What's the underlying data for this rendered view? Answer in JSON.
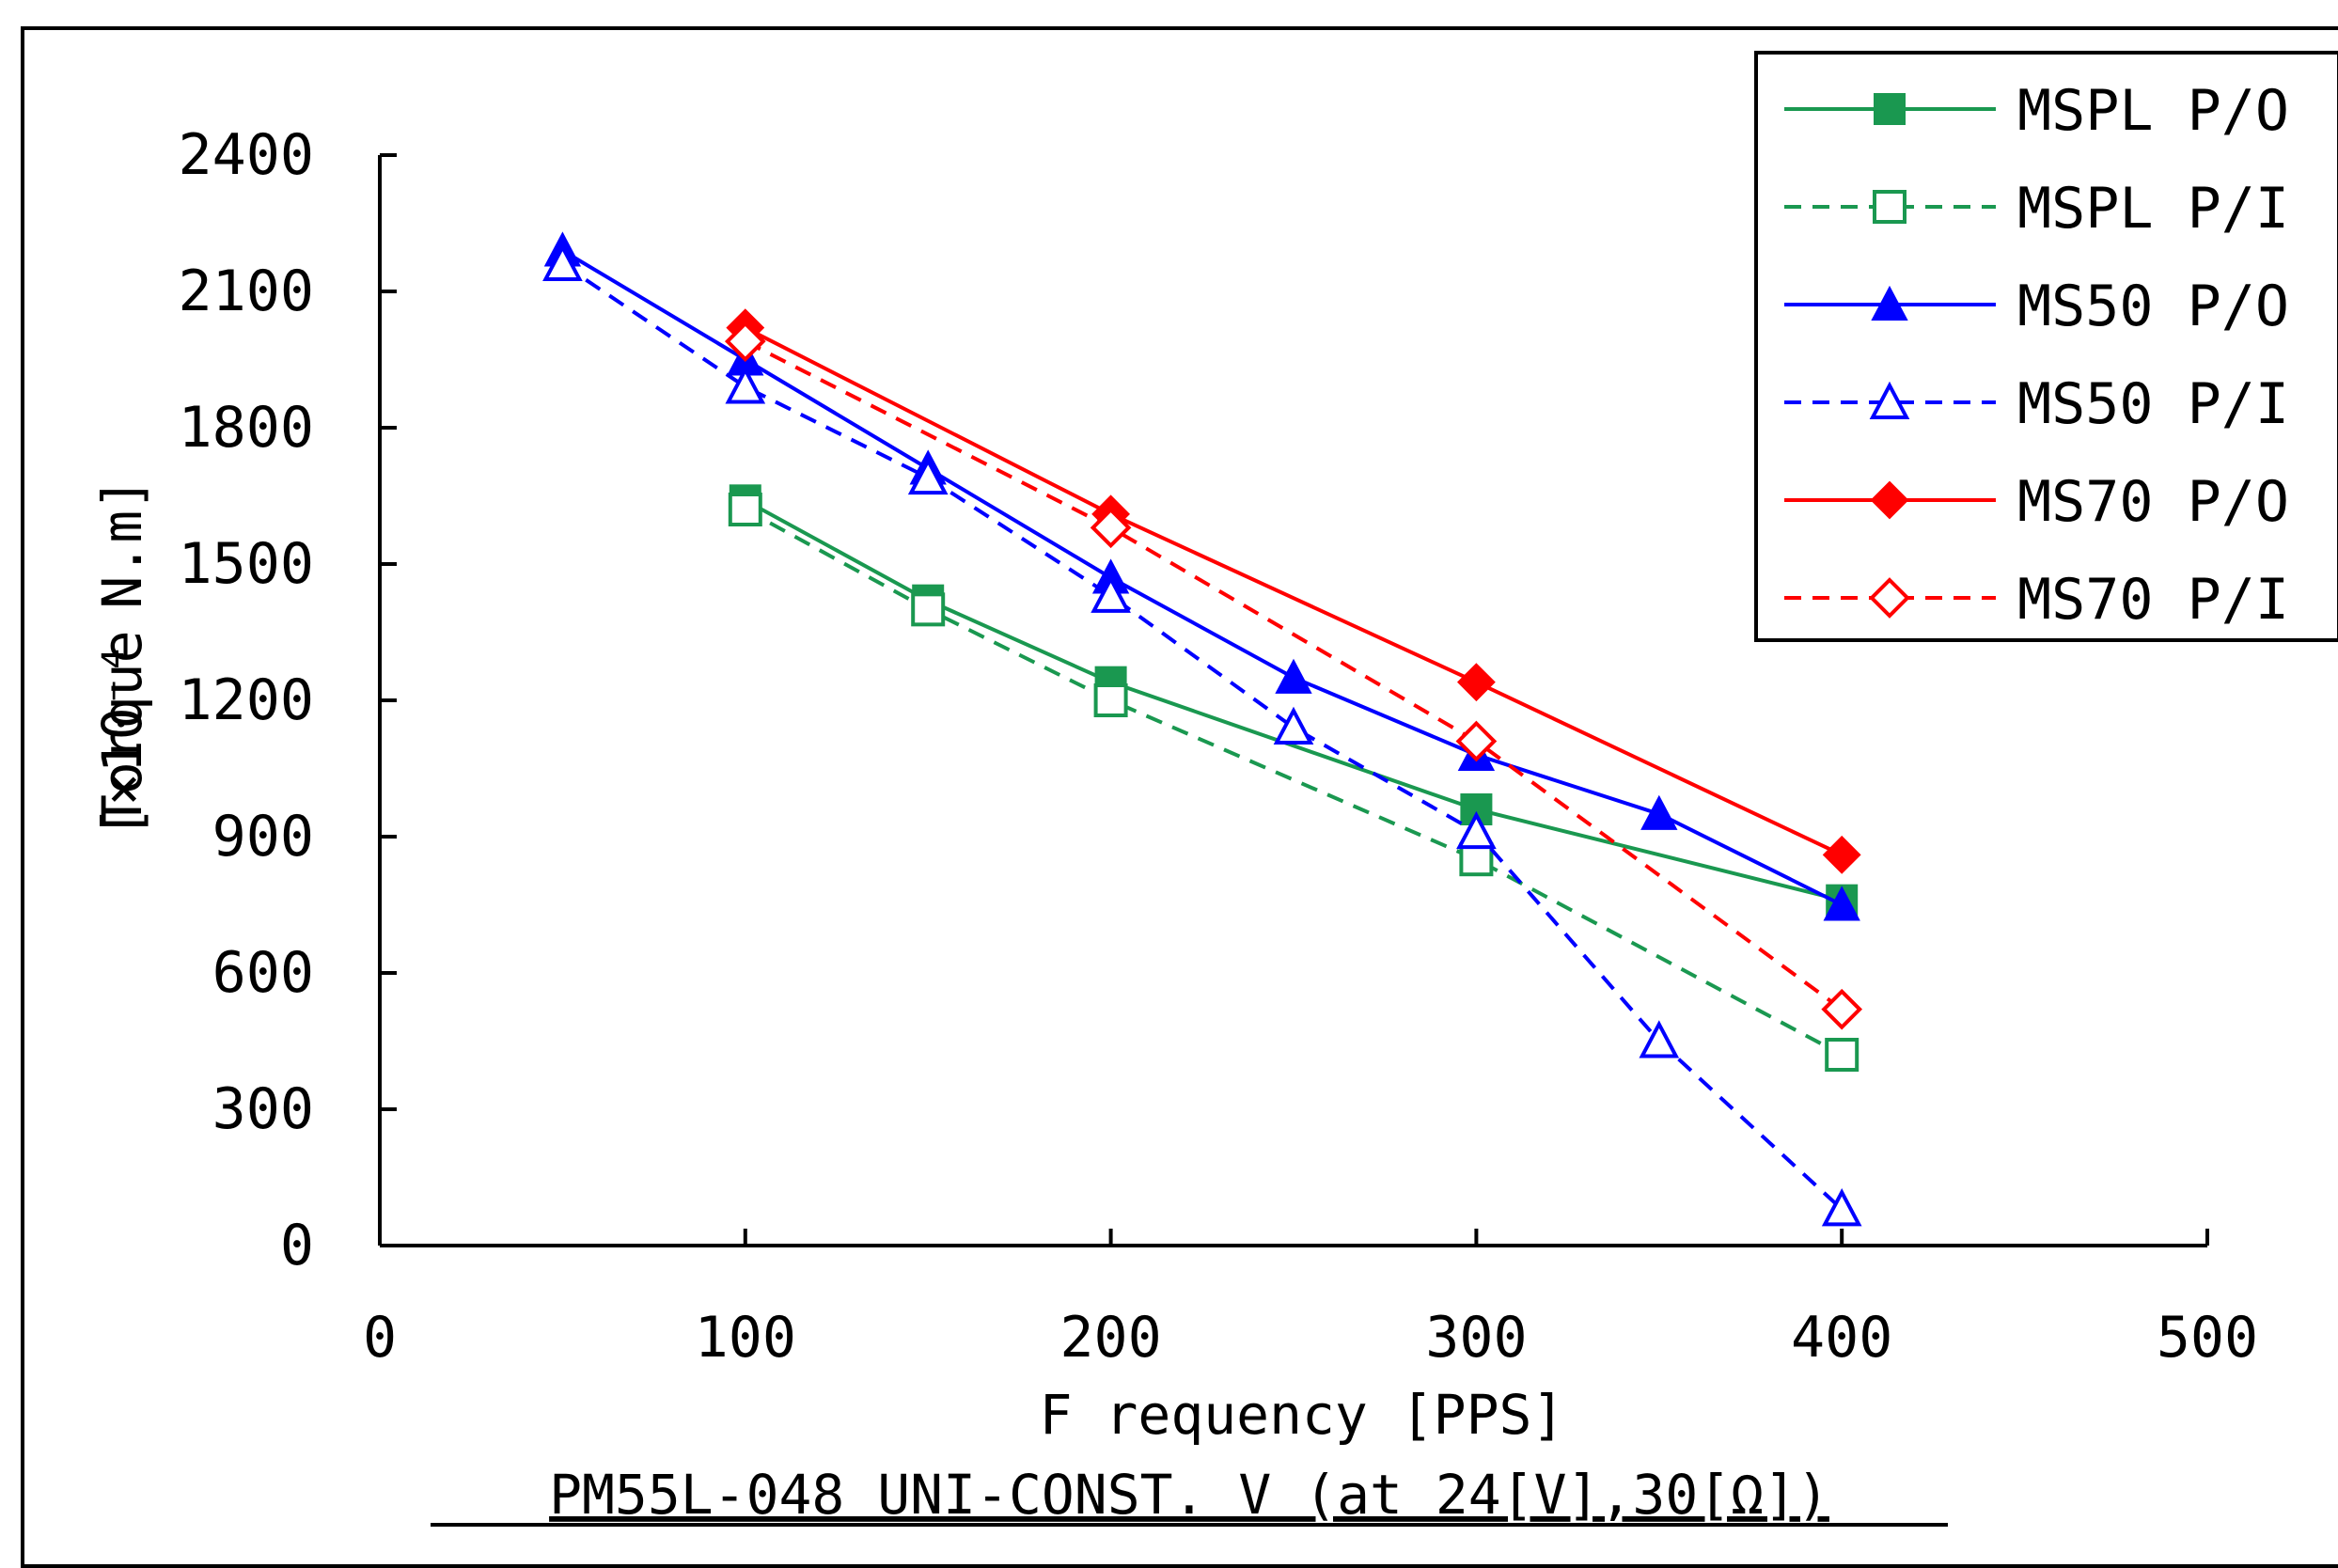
{
  "chart_data": {
    "type": "line",
    "xlabel": "F requency  [PPS]",
    "ylabel_main": "Torque",
    "ylabel_unit": "[×10⁻⁴ N.m]",
    "caption": "PM55L-048 UNI-CONST. V (at 24[V],30[Ω])",
    "xlim": [
      0,
      500
    ],
    "ylim": [
      0,
      2400
    ],
    "xticks": [
      "0",
      "100",
      "200",
      "300",
      "400",
      "500"
    ],
    "yticks": [
      "0",
      "300",
      "600",
      "900",
      "1200",
      "1500",
      "1800",
      "2100",
      "2400"
    ],
    "grid": false,
    "legend_position": "top-right",
    "series": [
      {
        "name": "MSPL  P/O",
        "color": "#1a9850",
        "dash": "solid",
        "marker": "square-filled",
        "x": [
          100,
          150,
          200,
          300,
          400
        ],
        "y": [
          1640,
          1420,
          1240,
          960,
          760
        ]
      },
      {
        "name": "MSPL  P/I",
        "color": "#1a9850",
        "dash": "dashed",
        "marker": "square-open",
        "x": [
          100,
          150,
          200,
          300,
          400
        ],
        "y": [
          1620,
          1400,
          1200,
          850,
          420
        ]
      },
      {
        "name": "MS50  P/O",
        "color": "#0000ff",
        "dash": "solid",
        "marker": "triangle-filled",
        "x": [
          50,
          100,
          150,
          200,
          250,
          300,
          350,
          400
        ],
        "y": [
          2190,
          1950,
          1710,
          1470,
          1250,
          1080,
          950,
          750
        ]
      },
      {
        "name": "MS50  P/I",
        "color": "#0000ff",
        "dash": "dashed",
        "marker": "triangle-open",
        "x": [
          50,
          100,
          150,
          200,
          250,
          300,
          350,
          400
        ],
        "y": [
          2160,
          1890,
          1690,
          1430,
          1140,
          910,
          450,
          80
        ]
      },
      {
        "name": "MS70  P/O",
        "color": "#ff0000",
        "dash": "solid",
        "marker": "diamond-filled",
        "x": [
          100,
          200,
          300,
          400
        ],
        "y": [
          2020,
          1610,
          1240,
          860
        ]
      },
      {
        "name": "MS70  P/I",
        "color": "#ff0000",
        "dash": "dashed",
        "marker": "diamond-open",
        "x": [
          100,
          200,
          300,
          400
        ],
        "y": [
          1990,
          1580,
          1110,
          520
        ]
      }
    ]
  }
}
